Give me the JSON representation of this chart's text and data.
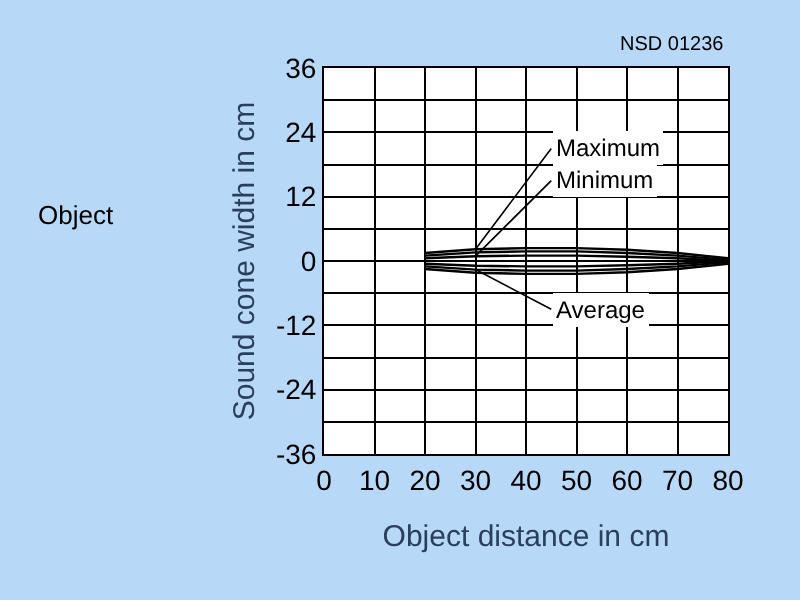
{
  "chart_data": {
    "type": "line",
    "xlabel": "Object distance in cm",
    "ylabel": "Sound cone width in cm",
    "annotations": [
      "NSD 01236",
      "Object"
    ],
    "series": [
      {
        "name": "Maximum",
        "color": "#000000",
        "x": [
          20,
          30,
          40,
          50,
          60,
          70,
          80
        ],
        "values": [
          1.5,
          2.2,
          2.4,
          2.4,
          2.1,
          1.5,
          0.5
        ]
      },
      {
        "name": "Minimum",
        "color": "#000000",
        "x": [
          20,
          30,
          40,
          50,
          60,
          70,
          80
        ],
        "values": [
          0.5,
          0.9,
          1.0,
          1.0,
          0.8,
          0.5,
          0
        ]
      },
      {
        "name": "Average",
        "color": "#000000",
        "x": [
          20,
          30,
          40,
          50,
          60,
          70,
          80
        ],
        "values": [
          -1.0,
          -1.6,
          -1.8,
          -1.8,
          -1.5,
          -1.0,
          -0.2
        ]
      },
      {
        "color": "#000000",
        "x": [
          20,
          30,
          40,
          50,
          60,
          70,
          80
        ],
        "values": [
          -1.5,
          -2.2,
          -2.4,
          -2.4,
          -2.1,
          -1.5,
          -0.5
        ]
      },
      {
        "color": "#000000",
        "x": [
          20,
          30,
          40,
          50,
          60,
          70,
          80
        ],
        "values": [
          -0.5,
          -0.9,
          -1.0,
          -1.0,
          -0.8,
          -0.5,
          0
        ]
      },
      {
        "color": "#000000",
        "x": [
          20,
          30,
          40,
          50,
          60,
          70,
          80
        ],
        "values": [
          1.0,
          1.6,
          1.8,
          1.8,
          1.5,
          1.0,
          0.2
        ]
      }
    ],
    "xlim": [
      0,
      80
    ],
    "xticks": [
      0,
      10,
      20,
      30,
      40,
      50,
      60,
      70,
      80
    ],
    "ylim": [
      -36,
      36
    ],
    "yticks": [
      -36,
      {
        "value": -30,
        "label": null
      },
      -24,
      {
        "value": -18,
        "label": null
      },
      -12,
      {
        "value": -6,
        "label": null
      },
      0,
      {
        "value": 6,
        "label": null
      },
      12,
      {
        "value": 18,
        "label": null
      },
      24,
      {
        "value": 30,
        "label": null
      },
      36
    ],
    "grid": true,
    "legend": false,
    "marker": "none",
    "line_style": "solid"
  }
}
